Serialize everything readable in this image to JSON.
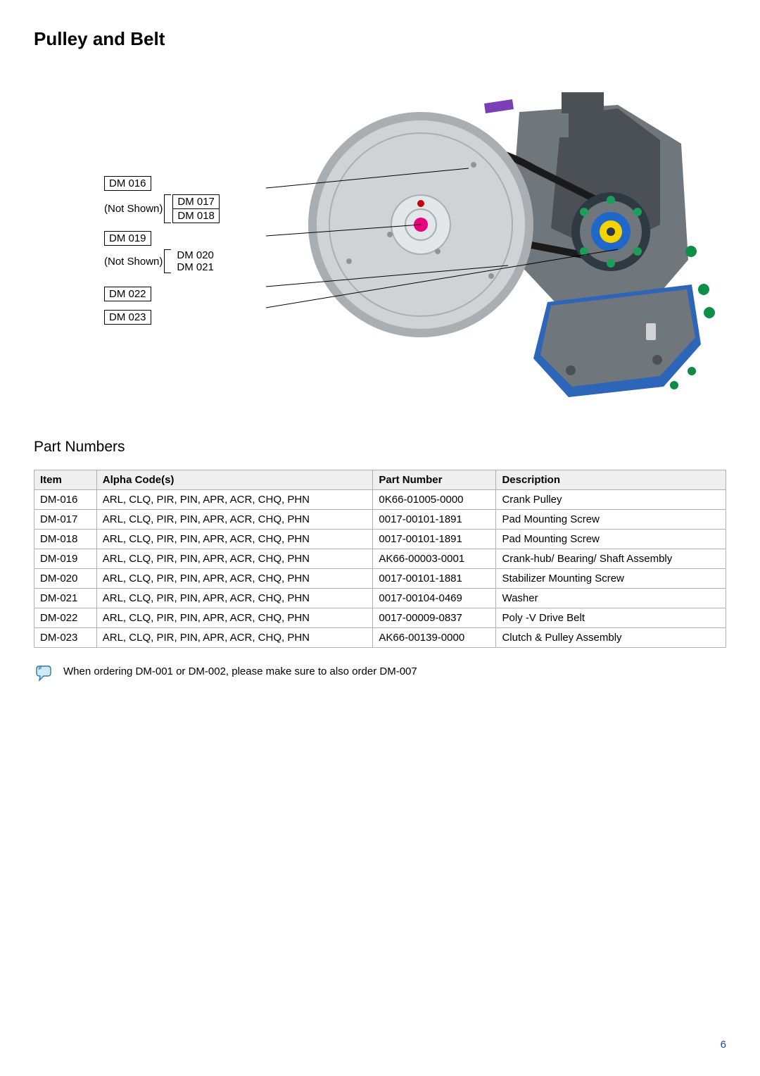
{
  "page_title": "Pulley and Belt",
  "not_shown_text": "(Not Shown)",
  "figure_labels": {
    "l016": "DM 016",
    "l017": "DM 017",
    "l018": "DM 018",
    "l019": "DM 019",
    "l020": "DM 020",
    "l021": "DM 021",
    "l022": "DM 022",
    "l023": "DM 023"
  },
  "section_title": "Part Numbers",
  "table": {
    "headers": {
      "item": "Item",
      "codes": "Alpha Code(s)",
      "part": "Part Number",
      "desc": "Description"
    },
    "rows": [
      {
        "item": "DM-016",
        "codes": "ARL, CLQ, PIR, PIN, APR, ACR, CHQ, PHN",
        "part": "0K66-01005-0000",
        "desc": "Crank Pulley"
      },
      {
        "item": "DM-017",
        "codes": "ARL, CLQ, PIR, PIN, APR, ACR, CHQ, PHN",
        "part": "0017-00101-1891",
        "desc": "Pad Mounting Screw"
      },
      {
        "item": "DM-018",
        "codes": "ARL, CLQ, PIR, PIN, APR, ACR, CHQ, PHN",
        "part": "0017-00101-1891",
        "desc": "Pad Mounting Screw"
      },
      {
        "item": "DM-019",
        "codes": "ARL, CLQ, PIR, PIN, APR, ACR, CHQ, PHN",
        "part": "AK66-00003-0001",
        "desc": "Crank-hub/ Bearing/ Shaft Assembly"
      },
      {
        "item": "DM-020",
        "codes": "ARL, CLQ, PIR, PIN, APR, ACR, CHQ, PHN",
        "part": "0017-00101-1881",
        "desc": "Stabilizer Mounting Screw"
      },
      {
        "item": "DM-021",
        "codes": "ARL, CLQ, PIR, PIN, APR, ACR, CHQ, PHN",
        "part": "0017-00104-0469",
        "desc": "Washer"
      },
      {
        "item": "DM-022",
        "codes": "ARL, CLQ, PIR, PIN, APR, ACR, CHQ, PHN",
        "part": "0017-00009-0837",
        "desc": "Poly -V Drive Belt"
      },
      {
        "item": "DM-023",
        "codes": "ARL, CLQ, PIR, PIN, APR, ACR, CHQ, PHN",
        "part": "AK66-00139-0000",
        "desc": "Clutch & Pulley Assembly"
      }
    ]
  },
  "note_text": "When ordering DM-001 or DM-002, please make sure to also order DM-007",
  "page_number": "6",
  "illustration": {
    "bg": "#ffffff",
    "housing": "#6f767c",
    "housing_dark": "#4a5056",
    "pulley_face": "#cfd3d6",
    "pulley_rim": "#a9aeb2",
    "hub": "#e4e7e9",
    "hub_center": "#e9007a",
    "accent_small": "#c20010",
    "clutch_body": "#2f3942",
    "clutch_ring": "#1f68c9",
    "clutch_cap": "#f4d300",
    "screw_green": "#1aa05a",
    "stab_green": "#0e8f47",
    "bracket_blue": "#2d66b8",
    "foot_green": "#118a47",
    "belt": "#1a1a1a",
    "purple": "#7a3fb5"
  }
}
